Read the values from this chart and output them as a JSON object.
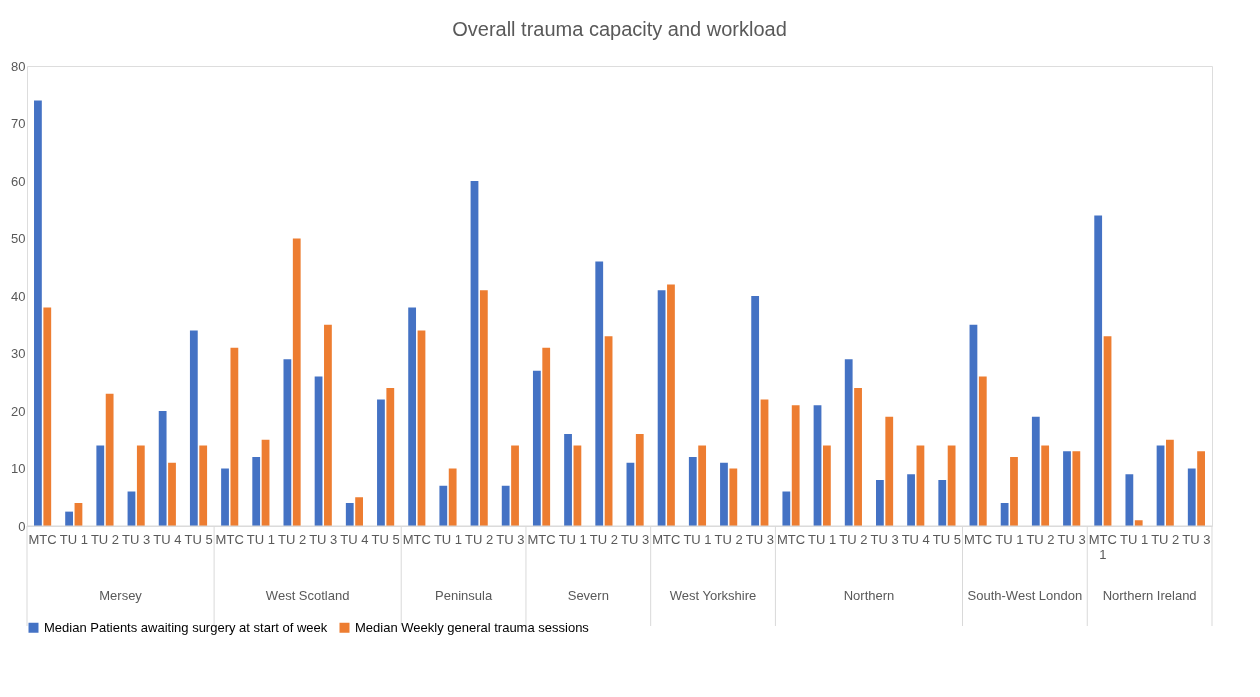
{
  "chart_data": {
    "type": "bar",
    "title": "Overall trauma capacity and workload",
    "categories": [
      "MTC",
      "TU 1",
      "TU 2",
      "TU 3",
      "TU 4",
      "TU 5",
      "MTC",
      "TU 1",
      "TU 2",
      "TU 3",
      "TU 4",
      "TU 5",
      "MTC",
      "TU 1",
      "TU 2",
      "TU 3",
      "MTC",
      "TU 1",
      "TU 2",
      "TU 3",
      "MTC",
      "TU 1",
      "TU 2",
      "TU 3",
      "MTC",
      "TU 1",
      "TU 2",
      "TU 3",
      "TU 4",
      "TU 5",
      "MTC",
      "TU 1",
      "TU 2",
      "TU 3",
      "MTC 1",
      "TU 1",
      "TU 2",
      "TU 3"
    ],
    "annotations": [
      "Mersey",
      "West Scotland",
      "Peninsula",
      "Severn",
      "West Yorkshire",
      "Northern",
      "South-West London",
      "Northern Ireland"
    ],
    "series": [
      {
        "name": "Median Patients awaiting surgery at start of week",
        "color": "#4472c4",
        "values": [
          74,
          2.5,
          14,
          6,
          20,
          34,
          10,
          12,
          29,
          26,
          4,
          22,
          38,
          7,
          60,
          7,
          27,
          16,
          46,
          11,
          41,
          12,
          11,
          40,
          6,
          21,
          29,
          8,
          9,
          8,
          35,
          4,
          19,
          13,
          54,
          9,
          14,
          10
        ]
      },
      {
        "name": "Median Weekly general trauma sessions",
        "color": "#ed7d31",
        "values": [
          38,
          4,
          23,
          14,
          11,
          14,
          31,
          15,
          50,
          35,
          5,
          24,
          34,
          10,
          41,
          14,
          31,
          14,
          33,
          16,
          42,
          14,
          10,
          22,
          21,
          14,
          24,
          19,
          14,
          14,
          26,
          12,
          14,
          13,
          33,
          1,
          15,
          13
        ]
      }
    ],
    "ylim": [
      0,
      80
    ],
    "yticks": [
      0,
      10,
      20,
      30,
      40,
      50,
      60,
      70,
      80
    ],
    "grid": false,
    "legend": "bottom"
  }
}
